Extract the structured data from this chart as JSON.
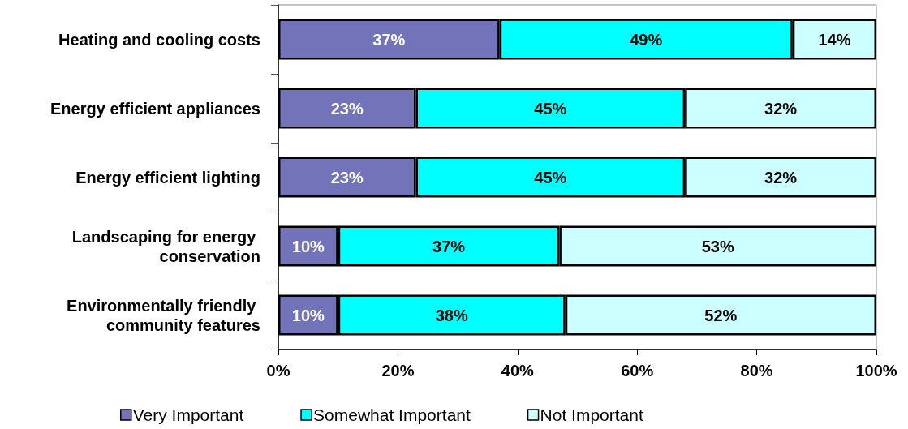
{
  "chart_data": {
    "type": "bar",
    "orientation": "horizontal",
    "stacked": true,
    "categories": [
      "Heating and cooling costs",
      "Energy efficient appliances",
      "Energy efficient lighting",
      "Landscaping for energy conservation",
      "Environmentally friendly community features"
    ],
    "series": [
      {
        "name": "Very Important",
        "color": "#7373b9",
        "values": [
          37,
          23,
          23,
          10,
          10
        ],
        "value_labels": [
          "37%",
          "23%",
          "23%",
          "10%",
          "10%"
        ]
      },
      {
        "name": "Somewhat Important",
        "color": "#00ffff",
        "values": [
          49,
          45,
          45,
          37,
          38
        ],
        "value_labels": [
          "49%",
          "45%",
          "45%",
          "37%",
          "38%"
        ]
      },
      {
        "name": "Not Important",
        "color": "#ccffff",
        "values": [
          14,
          32,
          32,
          53,
          52
        ],
        "value_labels": [
          "14%",
          "32%",
          "32%",
          "53%",
          "52%"
        ]
      }
    ],
    "xlim": [
      0,
      100
    ],
    "xticks": [
      {
        "value": 0,
        "label": "0%"
      },
      {
        "value": 20,
        "label": "20%"
      },
      {
        "value": 40,
        "label": "40%"
      },
      {
        "value": 60,
        "label": "60%"
      },
      {
        "value": 80,
        "label": "80%"
      },
      {
        "value": 100,
        "label": "100%"
      }
    ],
    "legend": "bottom",
    "grid": false
  }
}
